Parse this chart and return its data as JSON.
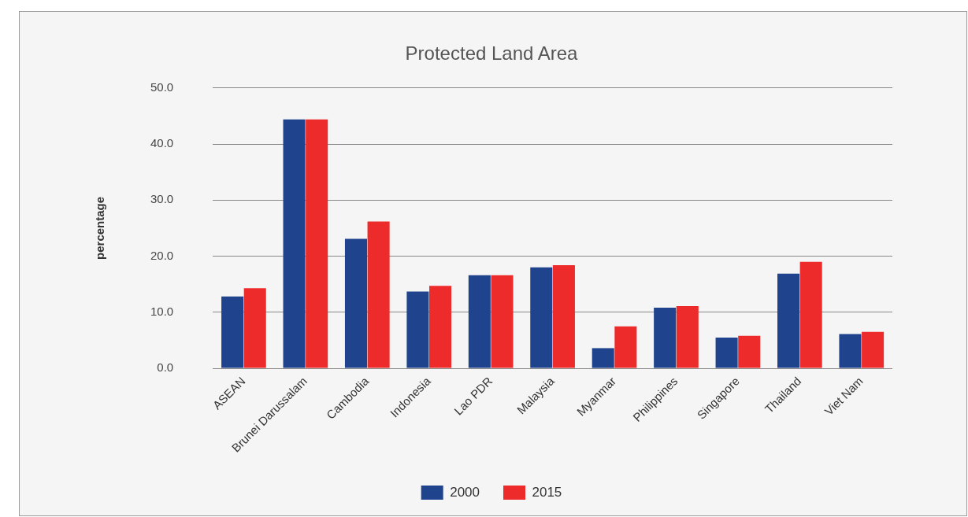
{
  "chart_data": {
    "type": "bar",
    "title": "Protected Land Area",
    "ylabel": "percentage",
    "categories": [
      "ASEAN",
      "Brunei Darussalam",
      "Cambodia",
      "Indonesia",
      "Lao PDR",
      "Malaysia",
      "Myanmar",
      "Philippines",
      "Singapore",
      "Thailand",
      "Viet Nam"
    ],
    "series": [
      {
        "name": "2000",
        "color": "#1f438c",
        "values": [
          12.8,
          44.4,
          23.1,
          13.7,
          16.6,
          18.0,
          3.6,
          10.8,
          5.5,
          16.9,
          6.1
        ]
      },
      {
        "name": "2015",
        "color": "#ee2b2b",
        "values": [
          14.3,
          44.4,
          26.2,
          14.7,
          16.6,
          18.4,
          7.5,
          11.1,
          5.8,
          19.0,
          6.5
        ]
      }
    ],
    "ylim": [
      0,
      50
    ],
    "yticks": [
      {
        "value": 0,
        "label": "0.0"
      },
      {
        "value": 10,
        "label": "10.0"
      },
      {
        "value": 20,
        "label": "20.0"
      },
      {
        "value": 30,
        "label": "30.0"
      },
      {
        "value": 40,
        "label": "40.0"
      },
      {
        "value": 50,
        "label": "50.0"
      }
    ],
    "grid": "y",
    "legend": "bottom"
  }
}
